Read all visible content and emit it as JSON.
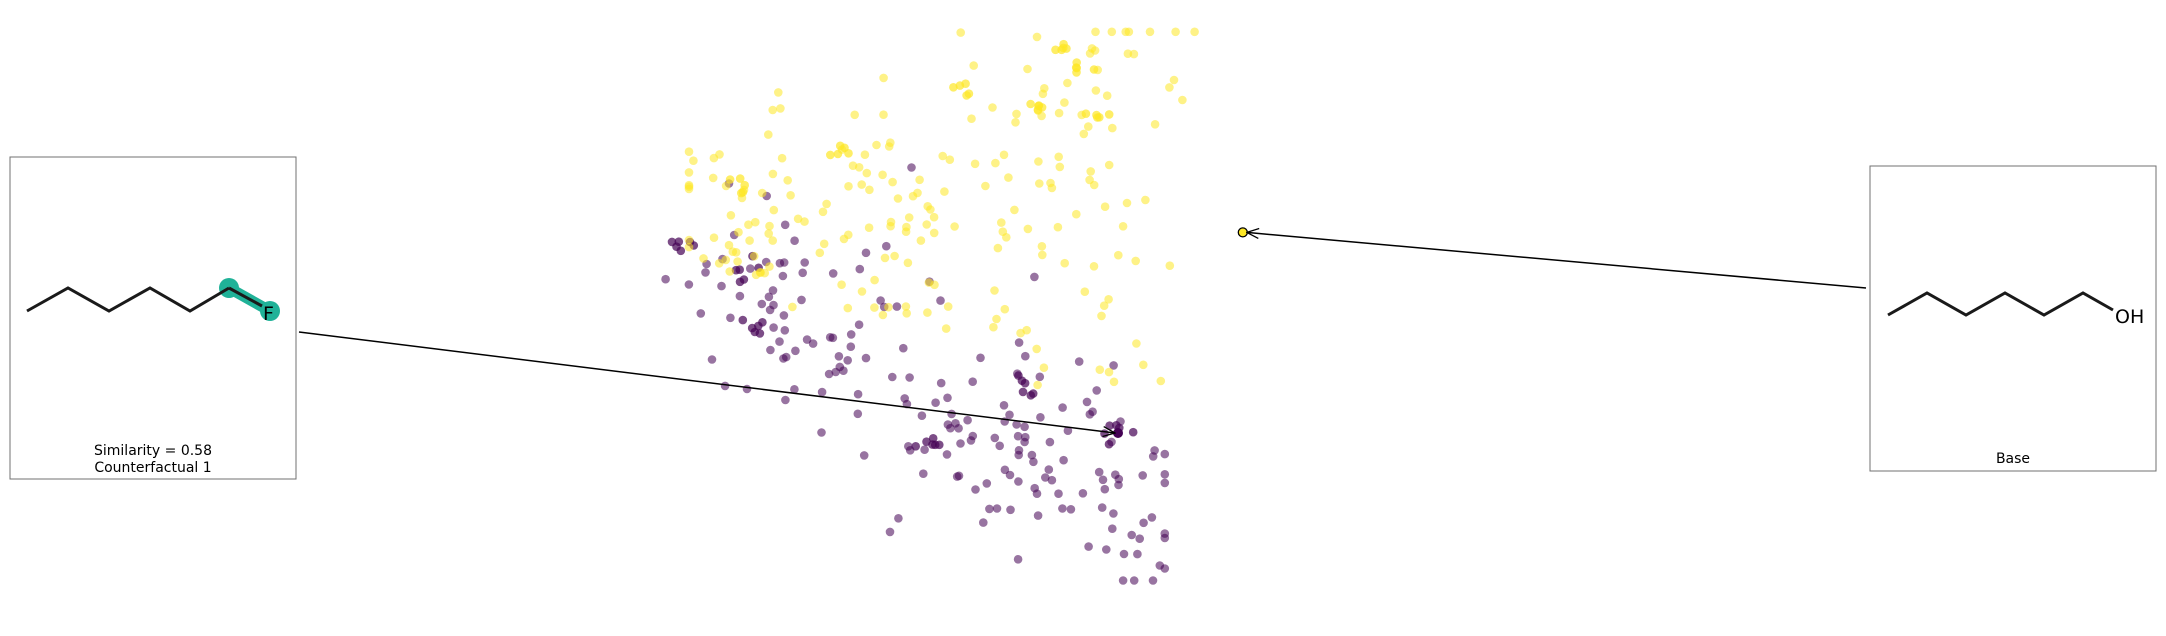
{
  "chart_data": {
    "type": "scatter",
    "title": "",
    "xlabel": "",
    "ylabel": "",
    "axes": "off",
    "grid": false,
    "xlim": [
      0,
      100
    ],
    "ylim": [
      0,
      100
    ],
    "series": [
      {
        "color": "#440154",
        "alpha": 0.55,
        "count": 180
      },
      {
        "color": "#fde725",
        "alpha": 0.55,
        "count": 200
      }
    ],
    "base_point": {
      "x": 76,
      "y": 64,
      "color": "#fde725"
    },
    "counterfactual_point": {
      "x": 60,
      "y": 30,
      "color": "#440154"
    }
  },
  "panels": {
    "counterfactual": {
      "similarity_text": "Similarity = 0.58",
      "title": "Counterfactual 1",
      "atom_label": "F",
      "highlight_color": "#20b298"
    },
    "base": {
      "title": "Base",
      "atom_label": "OH"
    }
  }
}
